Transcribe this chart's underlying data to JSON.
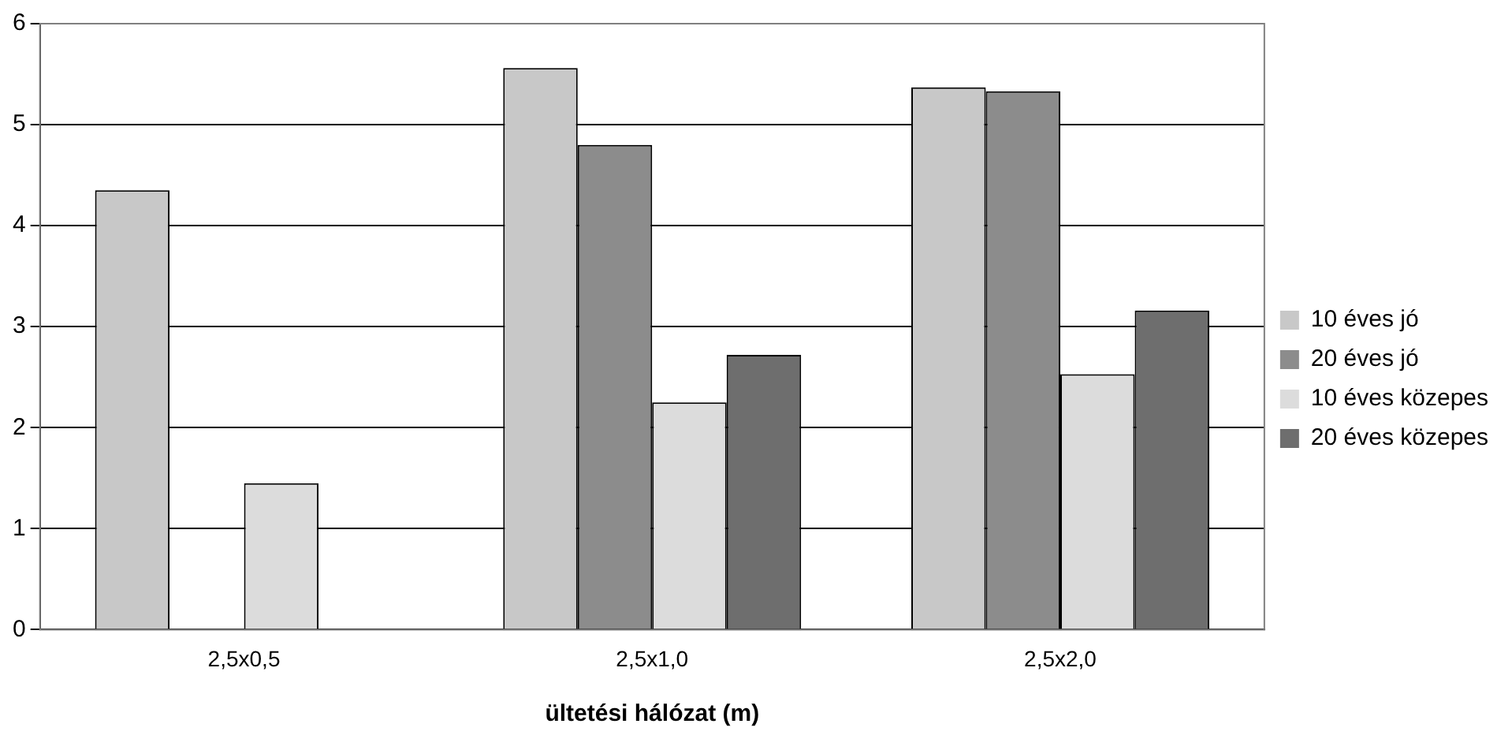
{
  "chart_data": {
    "type": "bar",
    "xlabel": "ültetési hálózat (m)",
    "categories": [
      "2,5x0,5",
      "2,5x1,0",
      "2,5x2,0"
    ],
    "series": [
      {
        "name": "10 éves jó",
        "color": "#c8c8c8",
        "values": [
          4.35,
          5.56,
          5.37
        ]
      },
      {
        "name": "20 éves jó",
        "color": "#8c8c8c",
        "values": [
          null,
          4.8,
          5.33
        ]
      },
      {
        "name": "10 éves közepes",
        "color": "#dcdcdc",
        "values": [
          1.45,
          2.25,
          2.53
        ]
      },
      {
        "name": "20 éves közepes",
        "color": "#6e6e6e",
        "values": [
          null,
          2.72,
          3.16
        ]
      }
    ],
    "ylim": [
      0,
      6
    ],
    "yticks": [
      0,
      1,
      2,
      3,
      4,
      5,
      6
    ],
    "grid": "y",
    "legend": "right"
  }
}
